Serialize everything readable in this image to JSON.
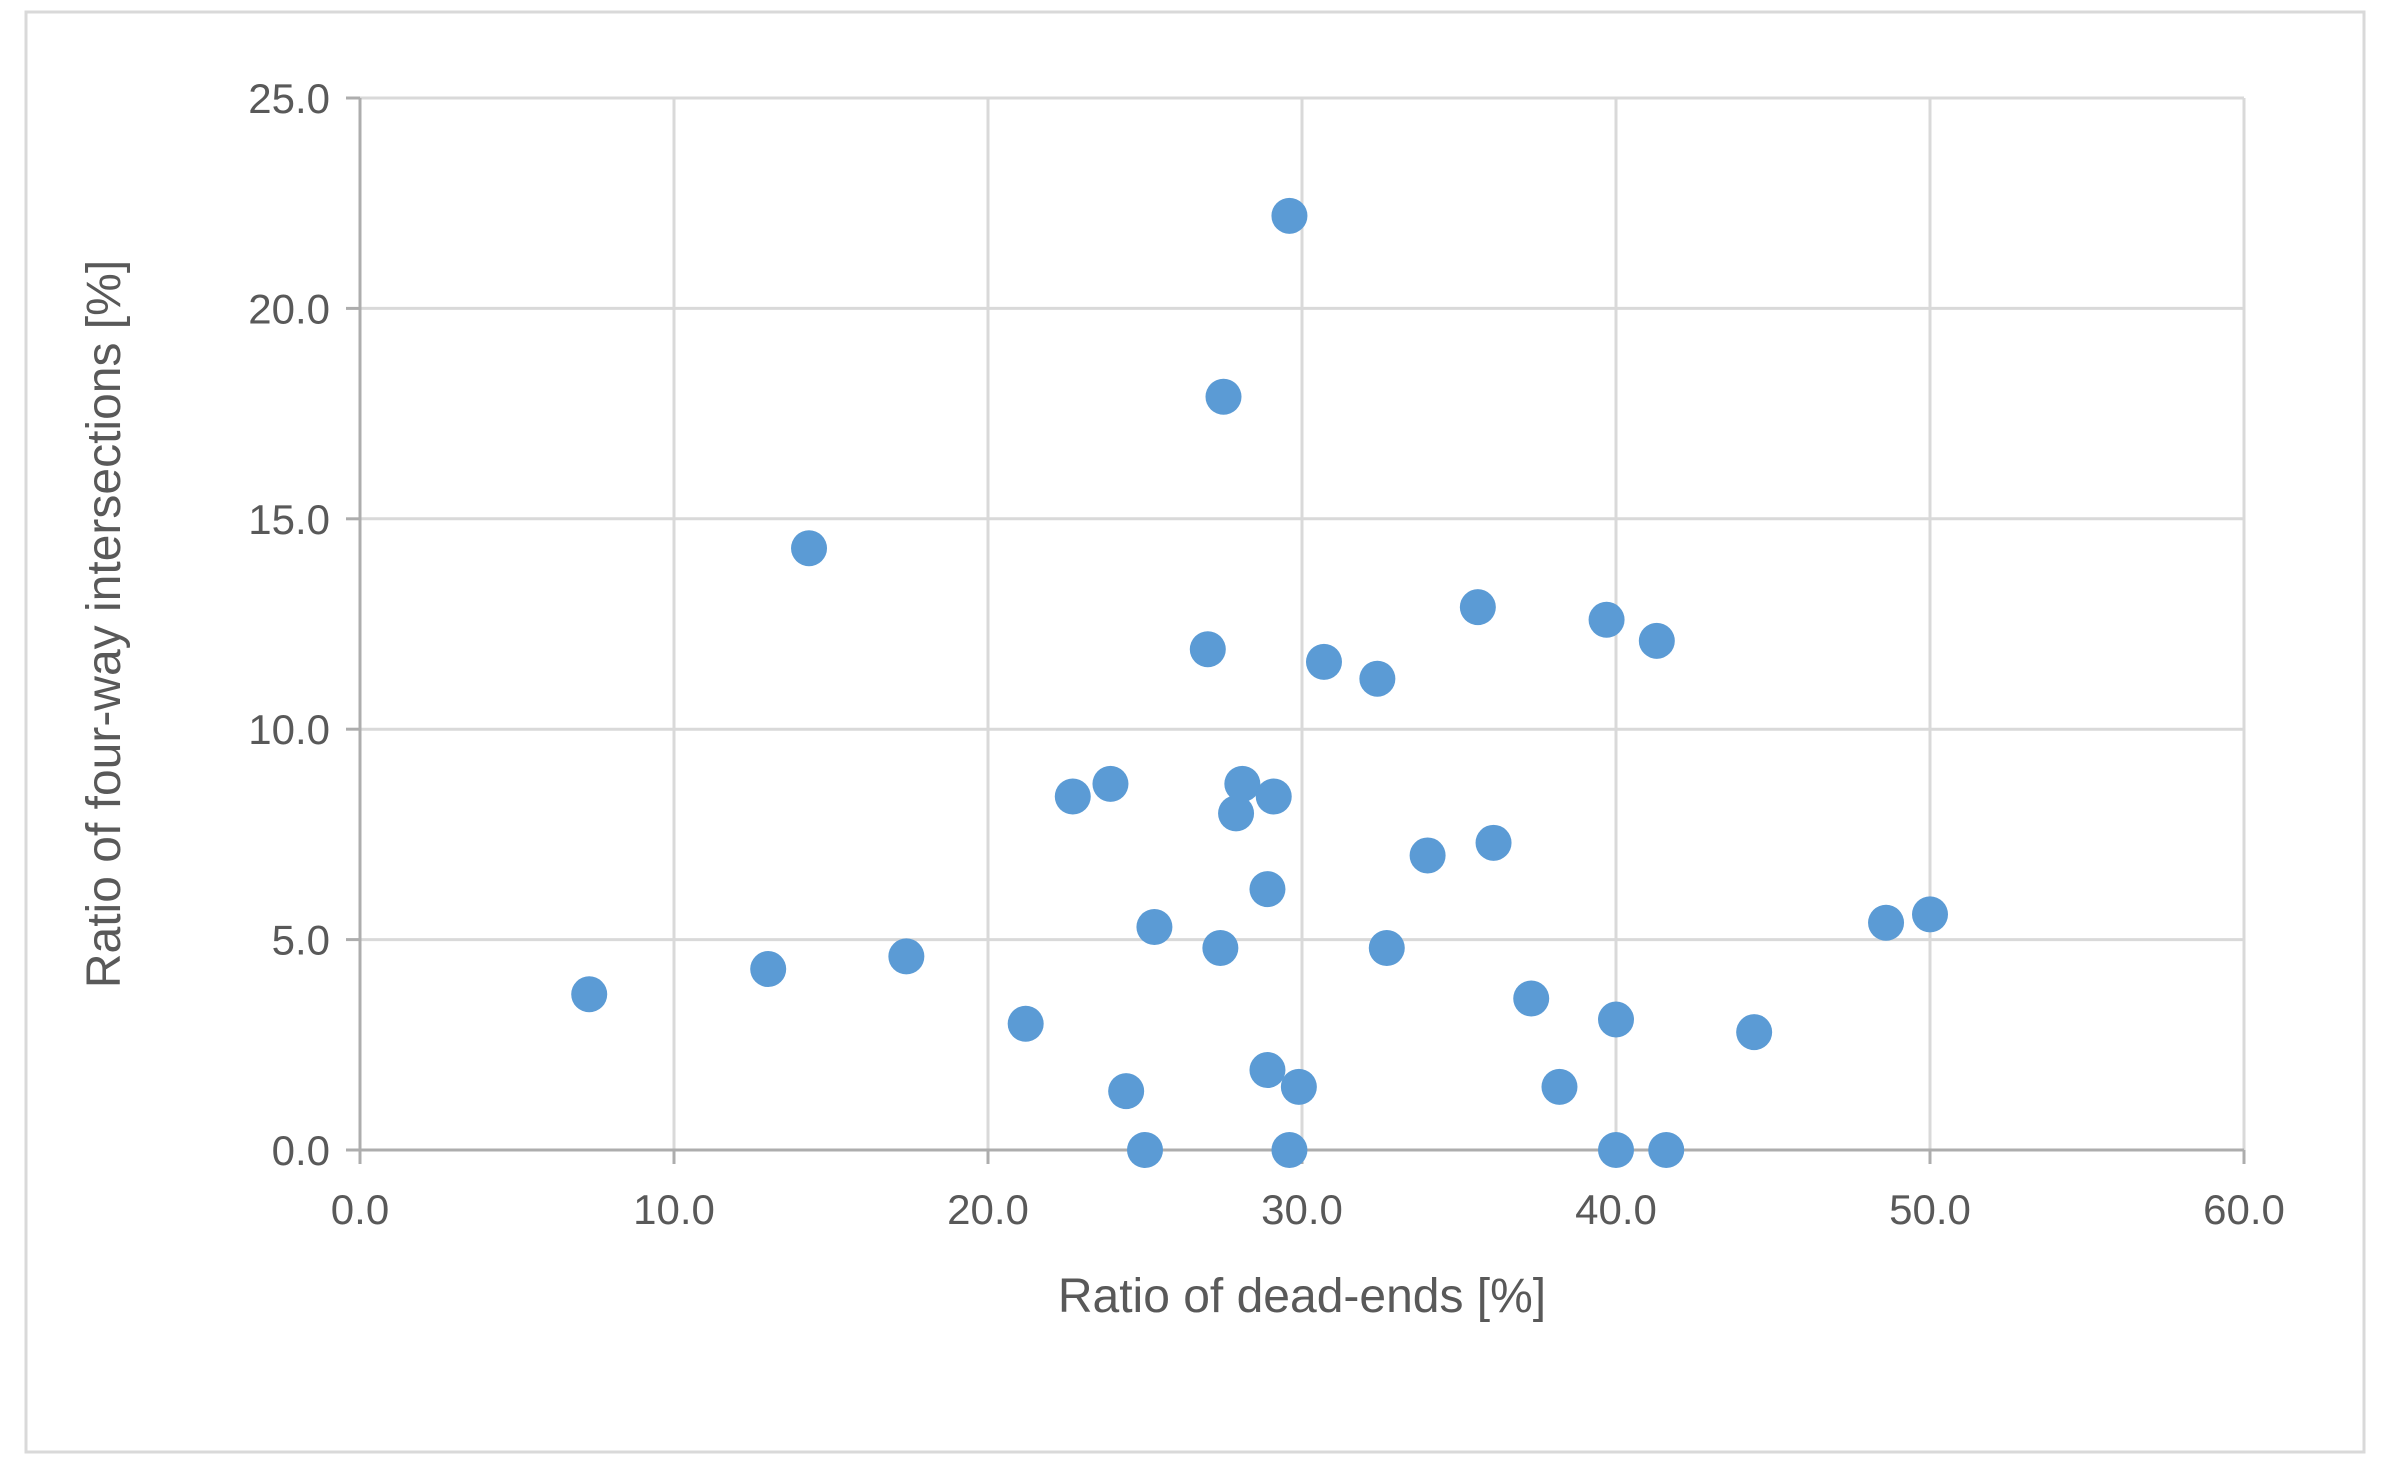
{
  "chart_data": {
    "type": "scatter",
    "title": "",
    "xlabel": "Ratio of dead-ends [%]",
    "ylabel": "Ratio of four-way intersections [%]",
    "xlim": [
      0,
      60
    ],
    "ylim": [
      0,
      25
    ],
    "x_ticks": [
      0,
      10,
      20,
      30,
      40,
      50,
      60
    ],
    "y_ticks": [
      0,
      5,
      10,
      15,
      20,
      25
    ],
    "x_tick_labels": [
      "0.0",
      "10.0",
      "20.0",
      "30.0",
      "40.0",
      "50.0",
      "60.0"
    ],
    "y_tick_labels": [
      "0.0",
      "5.0",
      "10.0",
      "15.0",
      "20.0",
      "25.0"
    ],
    "grid": true,
    "legend_position": "none",
    "series_name": "",
    "points": [
      [
        7.3,
        3.7
      ],
      [
        13.0,
        4.3
      ],
      [
        14.3,
        14.3
      ],
      [
        17.4,
        4.6
      ],
      [
        21.2,
        3.0
      ],
      [
        22.7,
        8.4
      ],
      [
        23.9,
        8.7
      ],
      [
        24.4,
        1.4
      ],
      [
        25.0,
        0.0
      ],
      [
        25.3,
        5.3
      ],
      [
        27.0,
        11.9
      ],
      [
        27.4,
        4.8
      ],
      [
        27.5,
        17.9
      ],
      [
        27.9,
        8.0
      ],
      [
        28.1,
        8.7
      ],
      [
        28.9,
        1.9
      ],
      [
        28.9,
        6.2
      ],
      [
        29.1,
        8.4
      ],
      [
        29.6,
        0.0
      ],
      [
        29.6,
        22.2
      ],
      [
        29.9,
        1.5
      ],
      [
        30.7,
        11.6
      ],
      [
        32.4,
        11.2
      ],
      [
        32.7,
        4.8
      ],
      [
        34.0,
        7.0
      ],
      [
        35.6,
        12.9
      ],
      [
        36.1,
        7.3
      ],
      [
        37.3,
        3.6
      ],
      [
        38.2,
        1.5
      ],
      [
        39.7,
        12.6
      ],
      [
        40.0,
        0.0
      ],
      [
        40.0,
        3.1
      ],
      [
        41.3,
        12.1
      ],
      [
        41.6,
        0.0
      ],
      [
        44.4,
        2.8
      ],
      [
        48.6,
        5.4
      ],
      [
        50.0,
        5.6
      ]
    ],
    "colors": {
      "marker": "#5B9BD5",
      "grid": "#D9D9D9",
      "axis": "#ADADAD",
      "text": "#595959",
      "frame": "#D9D9D9",
      "background": "#FFFFFF"
    }
  }
}
